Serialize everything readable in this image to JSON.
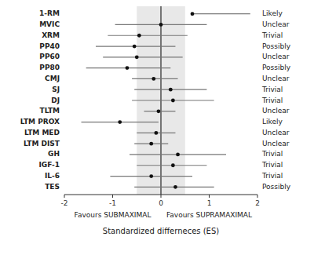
{
  "chart_data": {
    "type": "forest",
    "categories": [
      "1-RM",
      "MVIC",
      "XRM",
      "PP40",
      "PP60",
      "PP80",
      "CMJ",
      "SJ",
      "DJ",
      "TLTM",
      "LTM PROX",
      "LTM MED",
      "LTM DIST",
      "GH",
      "IGF-1",
      "IL-6",
      "TES"
    ],
    "values": [
      0.65,
      0.0,
      -0.45,
      -0.55,
      -0.5,
      -0.7,
      -0.15,
      0.2,
      0.25,
      -0.05,
      -0.85,
      -0.1,
      -0.2,
      0.35,
      0.25,
      -0.2,
      0.3
    ],
    "ci_low": [
      0.65,
      -0.95,
      -1.1,
      -1.35,
      -1.2,
      -1.55,
      -0.6,
      -0.55,
      -0.6,
      -0.35,
      -1.65,
      -0.5,
      -0.55,
      -0.65,
      -0.5,
      -1.05,
      -0.55
    ],
    "ci_high": [
      1.85,
      0.95,
      0.55,
      0.3,
      0.45,
      0.2,
      0.35,
      0.95,
      1.1,
      0.3,
      -0.05,
      0.3,
      0.15,
      1.35,
      0.95,
      0.65,
      1.1
    ],
    "right_labels": [
      "Likely",
      "Unclear",
      "Trivial",
      "Possibly",
      "Unclear",
      "Possibly",
      "Unclear",
      "Trivial",
      "Trivial",
      "Unclear",
      "Likely",
      "Unclear",
      "Unclear",
      "Trivial",
      "Trivial",
      "Trivial",
      "Possibly"
    ],
    "shaded_region": [
      -0.5,
      0.5
    ],
    "reference_line": 0,
    "annotations": [
      "Favours SUBMAXIMAL",
      "Favours SUPRAMAXIMAL"
    ],
    "xlabel": "Standardized differneces (ES)",
    "color": "#111111",
    "xlim": [
      -2,
      2
    ],
    "xticks": [
      -2,
      -1,
      0,
      1,
      2
    ]
  }
}
